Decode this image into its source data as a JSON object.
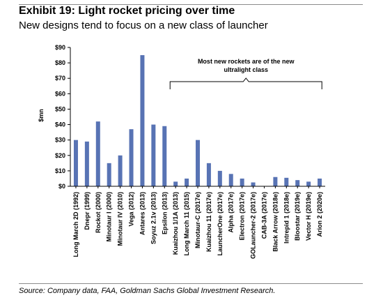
{
  "exhibit": {
    "title": "Exhibit 19: Light rocket pricing over time",
    "subtitle": "New designs tend to focus on a new class of launcher",
    "source": "Source: Company data, FAA, Goldman Sachs Global Investment Research."
  },
  "chart_data": {
    "type": "bar",
    "title": "Exhibit 19: Light rocket pricing over time",
    "subtitle": "New designs tend to focus on a new class of launcher",
    "ylabel": "$mn",
    "xlabel": "",
    "ylim": [
      0,
      90
    ],
    "yticks": [
      0,
      10,
      20,
      30,
      40,
      50,
      60,
      70,
      80,
      90
    ],
    "ytick_labels": [
      "$0",
      "$10",
      "$20",
      "$30",
      "$40",
      "$50",
      "$60",
      "$70",
      "$80",
      "$90"
    ],
    "grid": false,
    "bar_color": "#5873b4",
    "categories": [
      "Long March 2D (1992)",
      "Dnepr (1999)",
      "Rockot (2000)",
      "Minotaur I (2000)",
      "Minotaur IV (2010)",
      "Vega (2012)",
      "Antares (2013)",
      "Soyuz 2.1v (2013)",
      "Epsilon (2013)",
      "Kuaizhou 1/1A (2013)",
      "Long March 11 (2015)",
      "Minotaur-C (2017e)",
      "Kuaizhou 11 (2017e)",
      "LauncherOne (2017e)",
      "Alpha (2017e)",
      "Electron (2017e)",
      "GOLauncher-2 (2017e)",
      "CAB-3A (2017e)",
      "Black Arrow (2018e)",
      "Intrepid 1 (2018e)",
      "Bloostar (2019e)",
      "Vector H (2019e)",
      "Arion 2 (2020e)"
    ],
    "values": [
      30,
      29,
      42,
      15,
      20,
      37,
      85,
      40,
      39,
      3,
      5,
      30,
      15,
      10,
      8,
      5,
      2.5,
      0,
      6,
      5.5,
      4,
      3,
      5
    ],
    "annotation": {
      "text_line1": "Most new rockets are of the new",
      "text_line2": "ultralight class",
      "from_category": "Kuaizhou 1/1A (2013)",
      "to_category": "Arion 2 (2020e)"
    }
  }
}
